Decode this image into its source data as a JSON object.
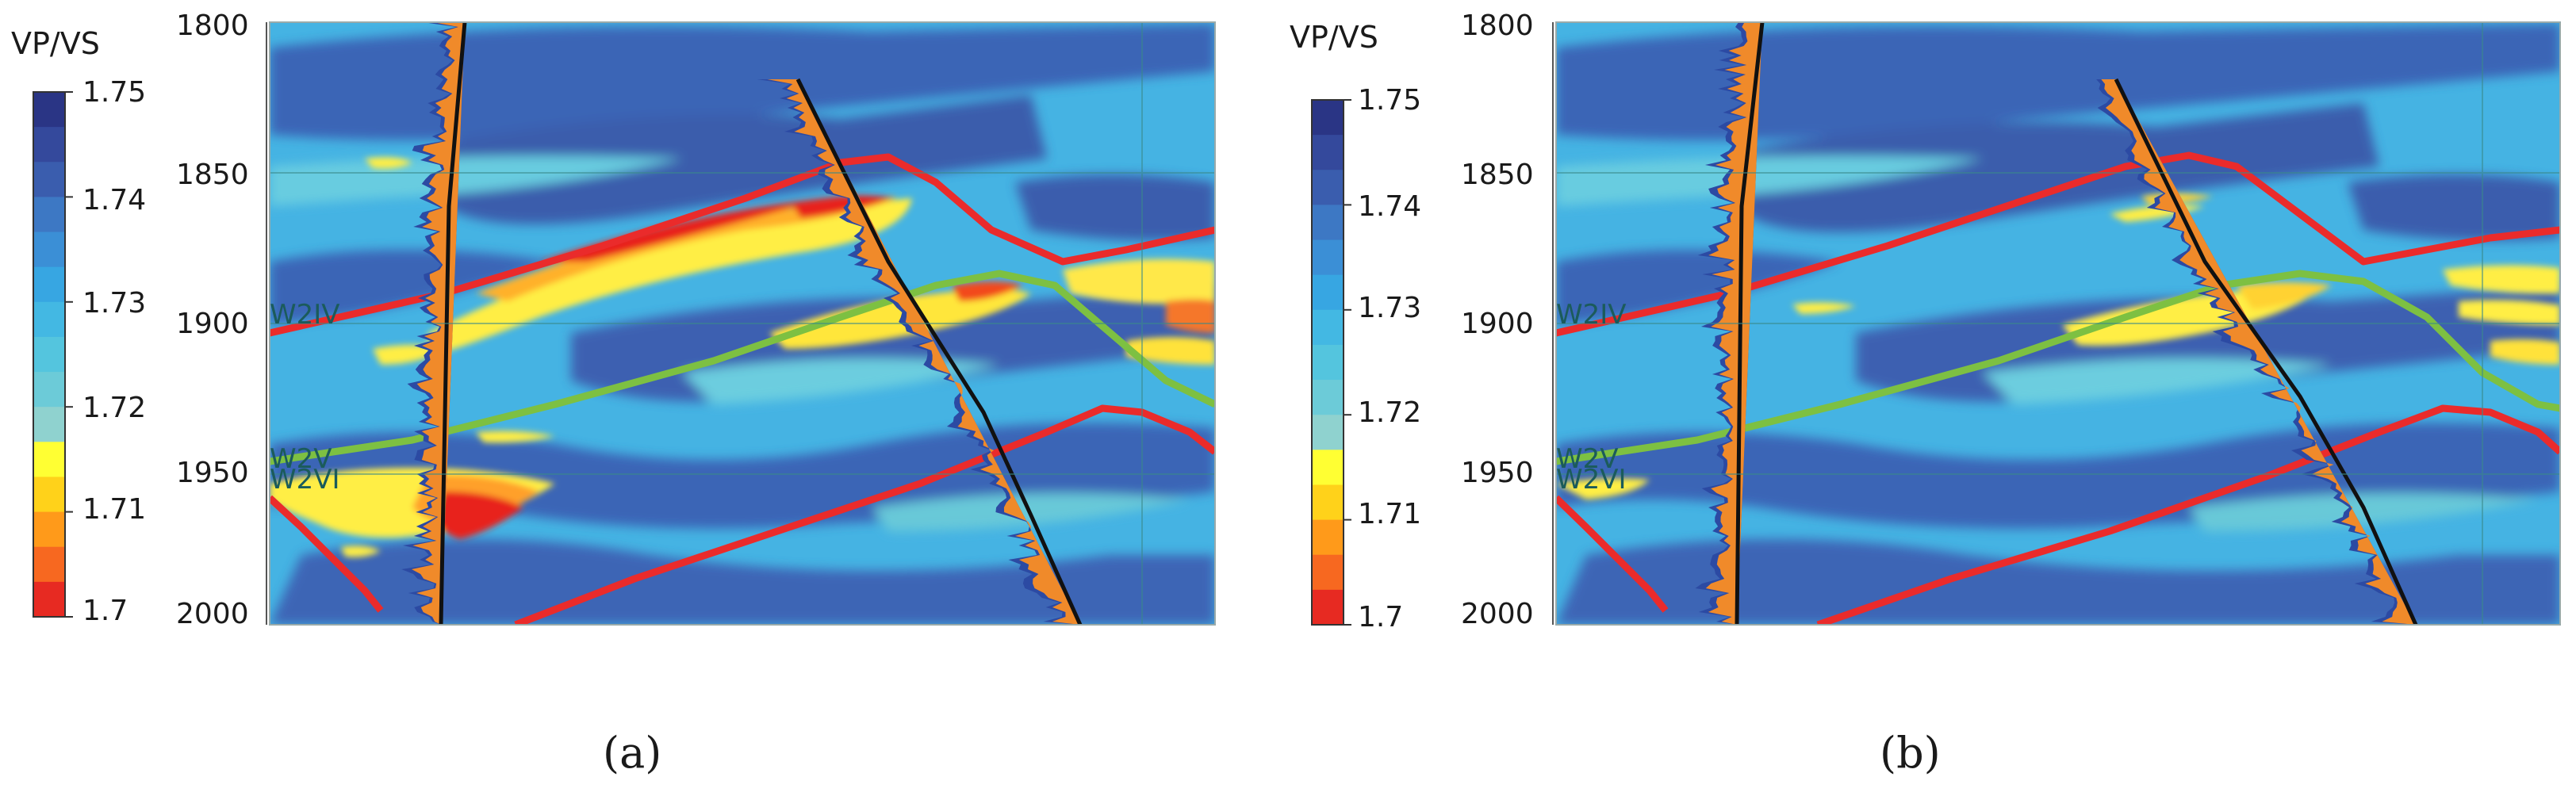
{
  "panels": [
    {
      "id": "a",
      "colorbar_title": "VP/VS",
      "colorbar_ticks": [
        "1.75",
        "1.74",
        "1.73",
        "1.72",
        "1.71",
        "1.7"
      ],
      "depth_ticks": [
        "1800",
        "1850",
        "1900",
        "1950",
        "2000"
      ],
      "horizon_labels": [
        "W2IV",
        "W2V",
        "W2VI"
      ],
      "caption": "(a)"
    },
    {
      "id": "b",
      "colorbar_title": "VP/VS",
      "colorbar_ticks": [
        "1.75",
        "1.74",
        "1.73",
        "1.72",
        "1.71",
        "1.7"
      ],
      "depth_ticks": [
        "1800",
        "1850",
        "1900",
        "1950",
        "2000"
      ],
      "horizon_labels": [
        "W2IV",
        "W2V",
        "W2VI"
      ],
      "caption": "(b)"
    }
  ],
  "colors": {
    "colorbar_bands": [
      "#2a3585",
      "#34499c",
      "#3a5dae",
      "#3d78c4",
      "#3b8fd6",
      "#37a6e2",
      "#43b8e3",
      "#54c5de",
      "#6ccbd8",
      "#8fd2cf",
      "#ffff33",
      "#ffd21a",
      "#ff9a1a",
      "#f76820",
      "#e72a22"
    ],
    "background_blue": "#45b3e3",
    "dark_blue": "#3a5fb3",
    "yellow": "#ffee44",
    "orange": "#f39a2f",
    "red_anomaly": "#e8221a",
    "horizon_red": "#ea2b2b",
    "horizon_green": "#7dc042",
    "well_log_fill": "#f08a2a",
    "well_log_edge": "#2c4aa3"
  }
}
